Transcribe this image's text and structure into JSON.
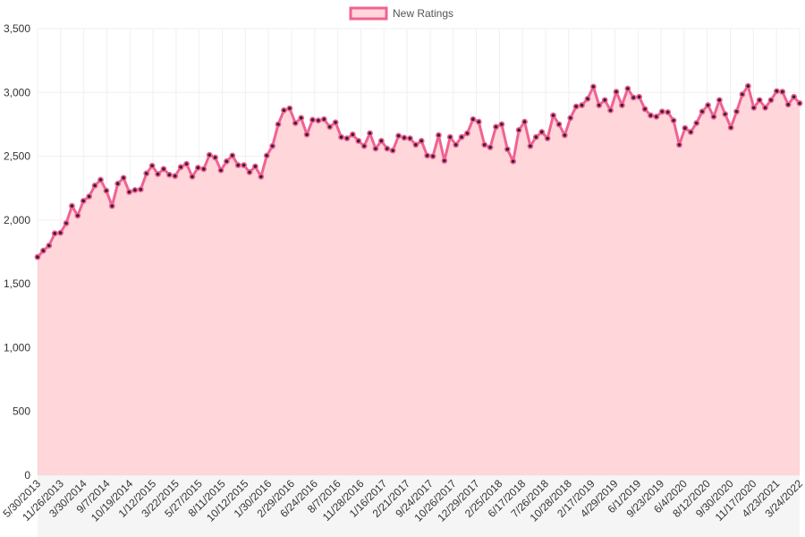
{
  "chart_data": {
    "type": "area",
    "series": [
      {
        "name": "New Ratings",
        "values": [
          1710,
          1760,
          1800,
          1895,
          1900,
          1975,
          2110,
          2035,
          2150,
          2185,
          2270,
          2315,
          2230,
          2110,
          2285,
          2330,
          2220,
          2235,
          2240,
          2365,
          2425,
          2360,
          2400,
          2355,
          2345,
          2415,
          2440,
          2340,
          2410,
          2400,
          2510,
          2490,
          2390,
          2460,
          2505,
          2430,
          2430,
          2375,
          2420,
          2340,
          2505,
          2580,
          2750,
          2860,
          2875,
          2760,
          2800,
          2670,
          2785,
          2780,
          2790,
          2730,
          2765,
          2650,
          2640,
          2670,
          2620,
          2580,
          2680,
          2560,
          2620,
          2560,
          2545,
          2660,
          2645,
          2640,
          2590,
          2620,
          2505,
          2500,
          2665,
          2465,
          2650,
          2590,
          2650,
          2680,
          2790,
          2770,
          2590,
          2570,
          2730,
          2750,
          2555,
          2460,
          2705,
          2770,
          2580,
          2650,
          2690,
          2640,
          2820,
          2750,
          2665,
          2800,
          2890,
          2900,
          2950,
          3045,
          2900,
          2940,
          2860,
          3005,
          2900,
          3030,
          2960,
          2965,
          2870,
          2820,
          2810,
          2850,
          2845,
          2780,
          2590,
          2720,
          2690,
          2760,
          2850,
          2900,
          2810,
          2940,
          2830,
          2725,
          2850,
          2985,
          3050,
          2880,
          2940,
          2880,
          2940,
          3010,
          3005,
          2905,
          2965,
          2915
        ]
      }
    ],
    "x_tick_labels": [
      "5/30/2013",
      "11/26/2013",
      "3/30/2014",
      "9/7/2014",
      "10/19/2014",
      "1/12/2015",
      "3/22/2015",
      "5/27/2015",
      "8/11/2015",
      "10/12/2015",
      "1/30/2016",
      "2/29/2016",
      "6/24/2016",
      "8/7/2016",
      "11/28/2016",
      "1/16/2017",
      "2/21/2017",
      "9/24/2017",
      "10/26/2017",
      "12/29/2017",
      "2/25/2018",
      "6/17/2018",
      "7/26/2018",
      "10/28/2018",
      "2/17/2019",
      "4/29/2019",
      "6/1/2019",
      "9/23/2019",
      "6/4/2020",
      "8/12/2020",
      "9/30/2020",
      "11/17/2020",
      "4/23/2021",
      "3/24/2022"
    ],
    "y_ticks": [
      "0",
      "500",
      "1,000",
      "1,500",
      "2,000",
      "2,500",
      "3,000",
      "3,500"
    ],
    "ylim": [
      0,
      3500
    ],
    "grid": true,
    "legend_position": "top",
    "colors": {
      "line": "#f06292",
      "fill": "#ffd6da",
      "point": "#3a1f3a",
      "grid": "#f0f0f0"
    }
  }
}
